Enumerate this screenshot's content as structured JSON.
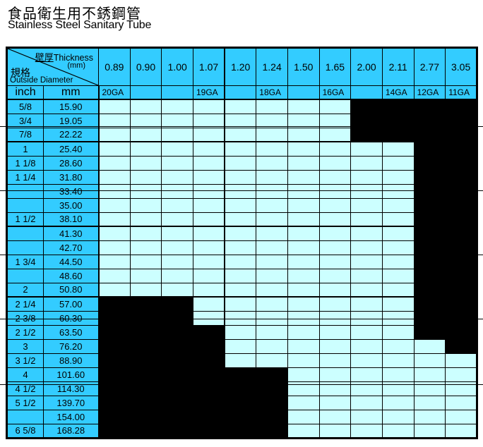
{
  "title": {
    "zh": "食品衛生用不銹鋼管",
    "en": "Stainless Steel Sanitary Tube"
  },
  "table": {
    "corner": {
      "thickness_zh": "壁厚",
      "thickness_en": "Thickness",
      "unit": "(mm)",
      "spec_zh": "規格",
      "spec_en": "Outside Diameter"
    },
    "subheader": {
      "inch": "inch",
      "mm": "mm"
    },
    "thickness_mm": [
      "0.89",
      "0.90",
      "1.00",
      "1.07",
      "1.20",
      "1.24",
      "1.50",
      "1.65",
      "2.00",
      "2.11",
      "2.77",
      "3.05"
    ],
    "gauges": [
      "20GA",
      "",
      "",
      "19GA",
      "",
      "18GA",
      "",
      "16GA",
      "",
      "14GA",
      "12GA",
      "11GA"
    ],
    "rows": [
      {
        "inch": "5/8",
        "mm": "15.90",
        "avail": [
          1,
          1,
          1,
          1,
          1,
          1,
          1,
          1,
          0,
          0,
          0,
          0
        ]
      },
      {
        "inch": "3/4",
        "mm": "19.05",
        "avail": [
          1,
          1,
          1,
          1,
          1,
          1,
          1,
          1,
          0,
          0,
          0,
          0
        ]
      },
      {
        "inch": "7/8",
        "mm": "22.22",
        "avail": [
          1,
          1,
          1,
          1,
          1,
          1,
          1,
          1,
          0,
          0,
          0,
          0
        ]
      },
      {
        "inch": "1",
        "mm": "25.40",
        "avail": [
          1,
          1,
          1,
          1,
          1,
          1,
          1,
          1,
          1,
          1,
          0,
          0
        ]
      },
      {
        "inch": "1 1/8",
        "mm": "28.60",
        "avail": [
          1,
          1,
          1,
          1,
          1,
          1,
          1,
          1,
          1,
          1,
          0,
          0
        ]
      },
      {
        "inch": "1 1/4",
        "mm": "31.80",
        "avail": [
          1,
          1,
          1,
          1,
          1,
          1,
          1,
          1,
          1,
          1,
          0,
          0
        ]
      },
      {
        "inch": "",
        "mm": "33.40",
        "avail": [
          1,
          1,
          1,
          1,
          1,
          1,
          1,
          1,
          1,
          1,
          0,
          0
        ]
      },
      {
        "inch": "",
        "mm": "35.00",
        "avail": [
          1,
          1,
          1,
          1,
          1,
          1,
          1,
          1,
          1,
          1,
          0,
          0
        ]
      },
      {
        "inch": "1 1/2",
        "mm": "38.10",
        "avail": [
          1,
          1,
          1,
          1,
          1,
          1,
          1,
          1,
          1,
          1,
          0,
          0
        ]
      },
      {
        "inch": "",
        "mm": "41.30",
        "avail": [
          1,
          1,
          1,
          1,
          1,
          1,
          1,
          1,
          1,
          1,
          0,
          0
        ]
      },
      {
        "inch": "",
        "mm": "42.70",
        "avail": [
          1,
          1,
          1,
          1,
          1,
          1,
          1,
          1,
          1,
          1,
          0,
          0
        ]
      },
      {
        "inch": "1 3/4",
        "mm": "44.50",
        "avail": [
          1,
          1,
          1,
          1,
          1,
          1,
          1,
          1,
          1,
          1,
          0,
          0
        ]
      },
      {
        "inch": "",
        "mm": "48.60",
        "avail": [
          1,
          1,
          1,
          1,
          1,
          1,
          1,
          1,
          1,
          1,
          0,
          0
        ]
      },
      {
        "inch": "2",
        "mm": "50.80",
        "avail": [
          1,
          1,
          1,
          1,
          1,
          1,
          1,
          1,
          1,
          1,
          0,
          0
        ]
      },
      {
        "inch": "2 1/4",
        "mm": "57.00",
        "avail": [
          0,
          0,
          0,
          1,
          1,
          1,
          1,
          1,
          1,
          1,
          0,
          0
        ]
      },
      {
        "inch": "2 3/8",
        "mm": "60.30",
        "avail": [
          0,
          0,
          0,
          1,
          1,
          1,
          1,
          1,
          1,
          1,
          0,
          0
        ]
      },
      {
        "inch": "2 1/2",
        "mm": "63.50",
        "avail": [
          0,
          0,
          0,
          0,
          1,
          1,
          1,
          1,
          1,
          1,
          0,
          0
        ]
      },
      {
        "inch": "3",
        "mm": "76.20",
        "avail": [
          0,
          0,
          0,
          0,
          1,
          1,
          1,
          1,
          1,
          1,
          1,
          0
        ]
      },
      {
        "inch": "3 1/2",
        "mm": "88.90",
        "avail": [
          0,
          0,
          0,
          0,
          1,
          1,
          1,
          1,
          1,
          1,
          1,
          1
        ]
      },
      {
        "inch": "4",
        "mm": "101.60",
        "avail": [
          0,
          0,
          0,
          0,
          0,
          0,
          1,
          1,
          1,
          1,
          1,
          1
        ]
      },
      {
        "inch": "4 1/2",
        "mm": "114.30",
        "avail": [
          0,
          0,
          0,
          0,
          0,
          0,
          1,
          1,
          1,
          1,
          1,
          1
        ]
      },
      {
        "inch": "5 1/2",
        "mm": "139.70",
        "avail": [
          0,
          0,
          0,
          0,
          0,
          0,
          1,
          1,
          1,
          1,
          1,
          1
        ]
      },
      {
        "inch": "",
        "mm": "154.00",
        "avail": [
          0,
          0,
          0,
          0,
          0,
          0,
          1,
          1,
          1,
          1,
          1,
          1
        ]
      },
      {
        "inch": "6 5/8",
        "mm": "168.28",
        "avail": [
          0,
          0,
          0,
          0,
          0,
          0,
          1,
          1,
          1,
          1,
          1,
          1
        ]
      }
    ],
    "section_after_rows": [
      2,
      8,
      13
    ],
    "group_divider_cols": [
      4
    ],
    "colors": {
      "header_bg": "#33ccff",
      "available_bg": "#ccffff",
      "unavailable_bg": "#000000"
    }
  }
}
